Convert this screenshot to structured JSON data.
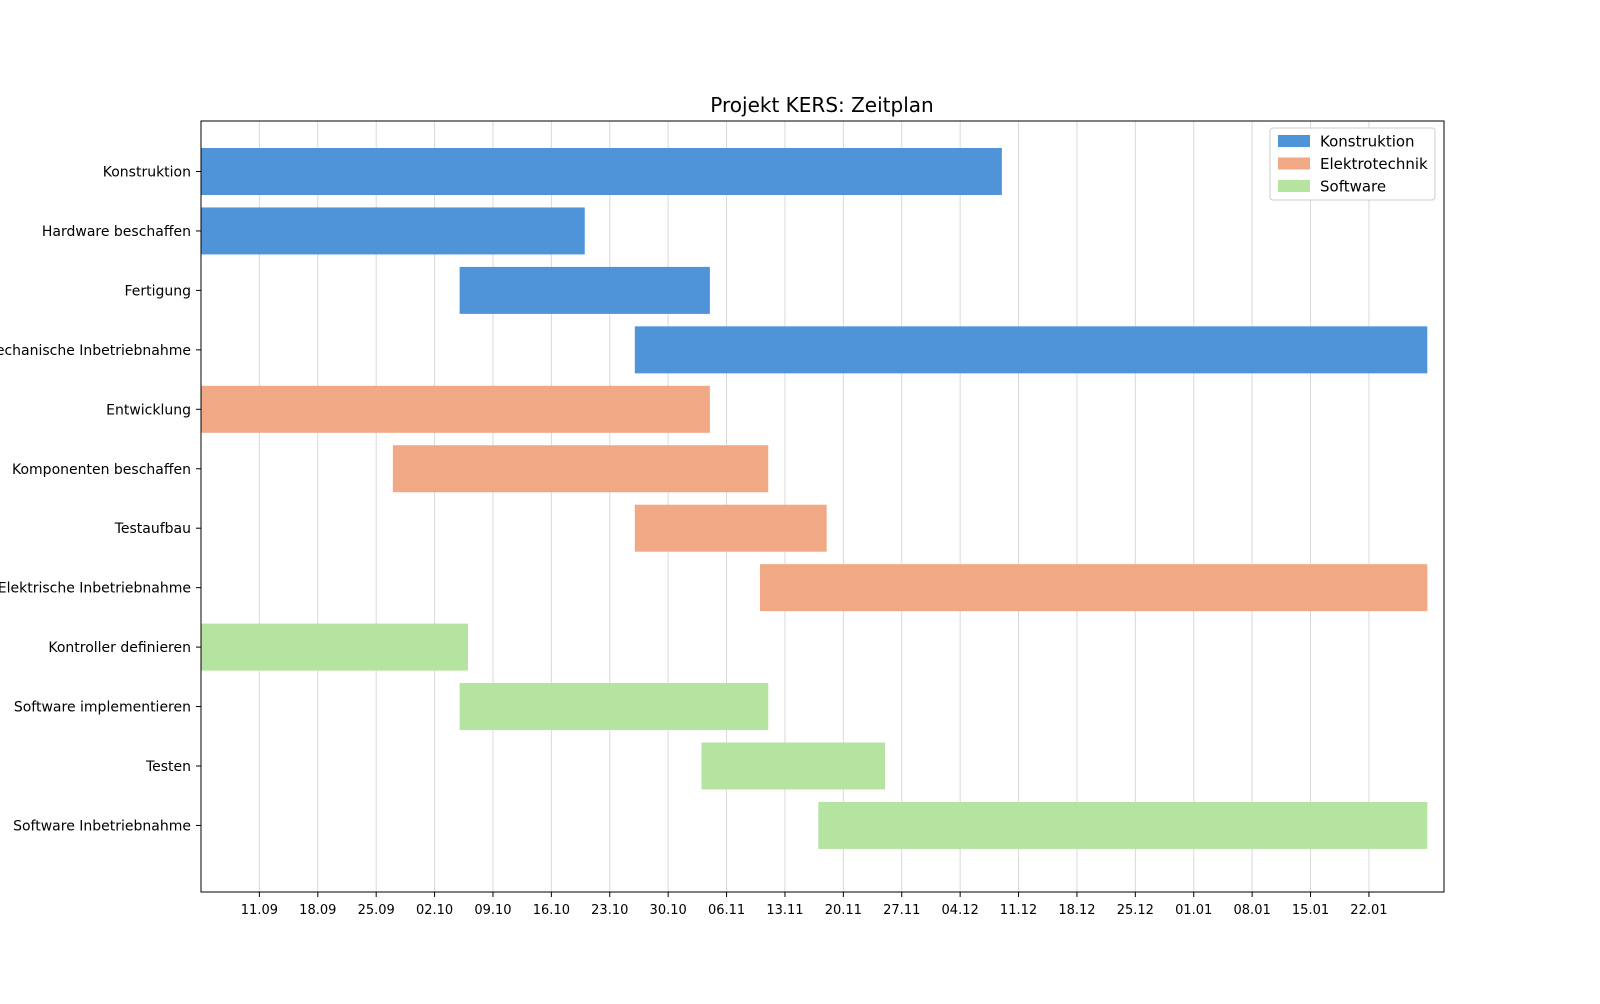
{
  "chart_data": {
    "type": "gantt",
    "title": "Projekt KERS: Zeitplan",
    "xlabel": "",
    "ylabel": "",
    "grid": "vertical",
    "legend_position": "top-right",
    "x_range": [
      "2023-09-04",
      "2024-01-31"
    ],
    "x_ticks": [
      {
        "date": "2023-09-11",
        "label": "11.09"
      },
      {
        "date": "2023-09-18",
        "label": "18.09"
      },
      {
        "date": "2023-09-25",
        "label": "25.09"
      },
      {
        "date": "2023-10-02",
        "label": "02.10"
      },
      {
        "date": "2023-10-09",
        "label": "09.10"
      },
      {
        "date": "2023-10-16",
        "label": "16.10"
      },
      {
        "date": "2023-10-23",
        "label": "23.10"
      },
      {
        "date": "2023-10-30",
        "label": "30.10"
      },
      {
        "date": "2023-11-06",
        "label": "06.11"
      },
      {
        "date": "2023-11-13",
        "label": "13.11"
      },
      {
        "date": "2023-11-20",
        "label": "20.11"
      },
      {
        "date": "2023-11-27",
        "label": "27.11"
      },
      {
        "date": "2023-12-04",
        "label": "04.12"
      },
      {
        "date": "2023-12-11",
        "label": "11.12"
      },
      {
        "date": "2023-12-18",
        "label": "18.12"
      },
      {
        "date": "2023-12-25",
        "label": "25.12"
      },
      {
        "date": "2024-01-01",
        "label": "01.01"
      },
      {
        "date": "2024-01-08",
        "label": "08.01"
      },
      {
        "date": "2024-01-15",
        "label": "15.01"
      },
      {
        "date": "2024-01-22",
        "label": "22.01"
      }
    ],
    "legend": [
      {
        "name": "Konstruktion",
        "color": "#4f94d9"
      },
      {
        "name": "Elektrotechnik",
        "color": "#f1a985"
      },
      {
        "name": "Software",
        "color": "#b4e4a0"
      }
    ],
    "tasks": [
      {
        "name": "Konstruktion",
        "group": "Konstruktion",
        "start": "2023-09-04",
        "end": "2023-12-09"
      },
      {
        "name": "Hardware beschaffen",
        "group": "Konstruktion",
        "start": "2023-09-04",
        "end": "2023-10-20"
      },
      {
        "name": "Fertigung",
        "group": "Konstruktion",
        "start": "2023-10-05",
        "end": "2023-11-04"
      },
      {
        "name": "Mechanische Inbetriebnahme",
        "group": "Konstruktion",
        "start": "2023-10-26",
        "end": "2024-01-29"
      },
      {
        "name": "Entwicklung",
        "group": "Elektrotechnik",
        "start": "2023-09-04",
        "end": "2023-11-04"
      },
      {
        "name": "Komponenten beschaffen",
        "group": "Elektrotechnik",
        "start": "2023-09-27",
        "end": "2023-11-11"
      },
      {
        "name": "Testaufbau",
        "group": "Elektrotechnik",
        "start": "2023-10-26",
        "end": "2023-11-18"
      },
      {
        "name": "Elektrische Inbetriebnahme",
        "group": "Elektrotechnik",
        "start": "2023-11-10",
        "end": "2024-01-29"
      },
      {
        "name": "Kontroller definieren",
        "group": "Software",
        "start": "2023-09-04",
        "end": "2023-10-06"
      },
      {
        "name": "Software implementieren",
        "group": "Software",
        "start": "2023-10-05",
        "end": "2023-11-11"
      },
      {
        "name": "Testen",
        "group": "Software",
        "start": "2023-11-03",
        "end": "2023-11-25"
      },
      {
        "name": "Software Inbetriebnahme",
        "group": "Software",
        "start": "2023-11-17",
        "end": "2024-01-29"
      }
    ]
  }
}
